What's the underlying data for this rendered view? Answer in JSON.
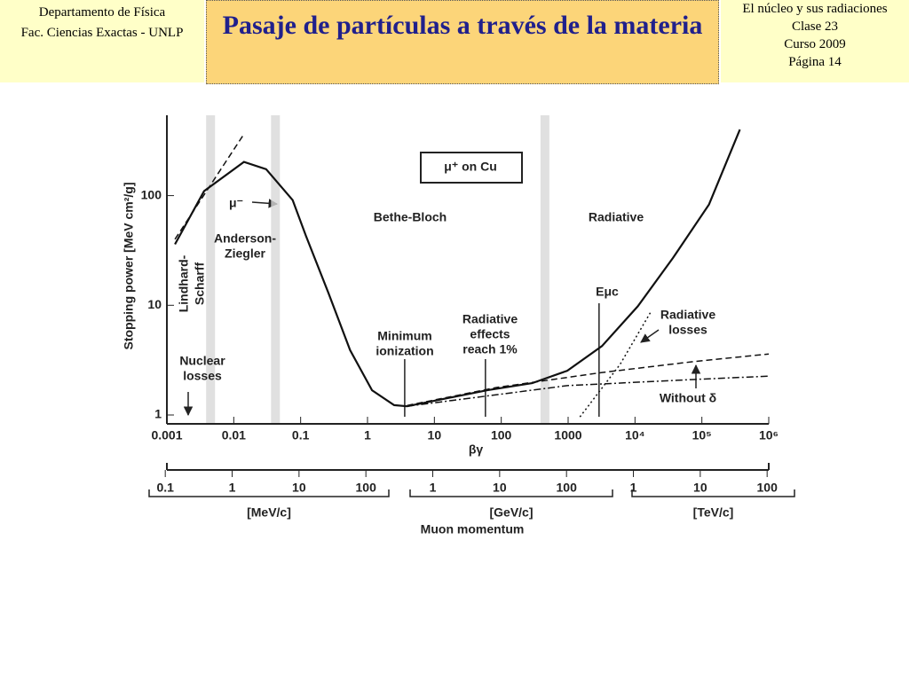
{
  "header": {
    "left": [
      "Departamento de Física",
      "Fac. Ciencias Exactas - UNLP"
    ],
    "title": "Pasaje de partículas a través de la materia",
    "right": [
      "El núcleo y sus radiaciones",
      "Clase 23",
      "Curso 2009",
      "Página 14"
    ]
  },
  "chart_data": {
    "type": "line",
    "log_x": true,
    "log_y": true,
    "x_label": "βγ",
    "y_label": "Stopping power [MeV cm²/g]",
    "xlim": [
      0.001,
      1000000
    ],
    "ylim": [
      0.83,
      540
    ],
    "xticks": [
      0.001,
      0.01,
      0.1,
      1,
      10,
      100,
      1000,
      {
        "value": 10000,
        "label": "10⁴"
      },
      {
        "value": 100000,
        "label": "10⁵"
      },
      {
        "value": 1000000,
        "label": "10⁶"
      }
    ],
    "yticks": [
      1,
      10,
      100
    ],
    "bands": [
      0.0045,
      0.042,
      450
    ],
    "vlines": [
      3.6,
      58,
      2900
    ],
    "series": [
      {
        "style": "solid",
        "x": [
          0.00132,
          0.0036,
          0.0142,
          0.0305,
          0.076,
          0.12,
          0.26,
          0.55,
          1.17,
          2.5,
          3.9,
          13.6,
          62,
          290,
          970,
          3200,
          11000,
          37000,
          128000,
          370000
        ],
        "values": [
          36,
          110,
          203,
          174,
          91,
          43,
          13,
          3.9,
          1.68,
          1.23,
          1.2,
          1.4,
          1.68,
          1.95,
          2.53,
          4.25,
          9.8,
          27,
          83,
          400
        ]
      },
      {
        "style": "dashed",
        "x": [
          0.00132,
          0.0142
        ],
        "values": [
          40,
          364
        ]
      },
      {
        "style": "dotted",
        "x": [
          1500,
          6000,
          17600
        ],
        "values": [
          0.96,
          2.9,
          8.9
        ]
      },
      {
        "style": "dashed",
        "x": [
          3.9,
          85,
          3200,
          69000,
          1000000
        ],
        "values": [
          1.22,
          1.78,
          2.44,
          3.05,
          3.6
        ]
      },
      {
        "style": "dashdot",
        "x": [
          3.9,
          970,
          69000,
          1000000
        ],
        "values": [
          1.2,
          1.85,
          2.1,
          2.26
        ]
      }
    ],
    "annotations": [
      {
        "lines": [
          "μ⁺ on Cu"
        ]
      },
      {
        "lines": [
          "μ⁻"
        ]
      },
      {
        "lines": [
          "Anderson-",
          "Ziegler"
        ]
      },
      {
        "lines": [
          "Lindhard-",
          "Scharff"
        ]
      },
      {
        "lines": [
          "Bethe-Bloch"
        ]
      },
      {
        "lines": [
          "Radiative"
        ]
      },
      {
        "lines": [
          "Minimum",
          "ionization"
        ]
      },
      {
        "lines": [
          "Radiative",
          "effects",
          "reach 1%"
        ]
      },
      {
        "lines": [
          "Eμc"
        ]
      },
      {
        "lines": [
          "Radiative",
          "losses"
        ]
      },
      {
        "lines": [
          "Without δ"
        ]
      },
      {
        "lines": [
          "Nuclear",
          "losses"
        ]
      }
    ],
    "momentum_axis": {
      "label": "Muon momentum",
      "segments": [
        {
          "unit": "[MeV/c]",
          "ticks": [
            {
              "value": 0.000946,
              "label": "0.1"
            },
            {
              "value": 0.00946,
              "label": "1"
            },
            {
              "value": 0.0946,
              "label": "10"
            },
            {
              "value": 0.946,
              "label": "100"
            }
          ]
        },
        {
          "unit": "[GeV/c]",
          "ticks": [
            {
              "value": 9.46,
              "label": "1"
            },
            {
              "value": 94.6,
              "label": "10"
            },
            {
              "value": 946,
              "label": "100"
            }
          ]
        },
        {
          "unit": "[TeV/c]",
          "ticks": [
            {
              "value": 9460,
              "label": "1"
            },
            {
              "value": 94600,
              "label": "10"
            },
            {
              "value": 946000,
              "label": "100"
            }
          ]
        }
      ]
    }
  }
}
